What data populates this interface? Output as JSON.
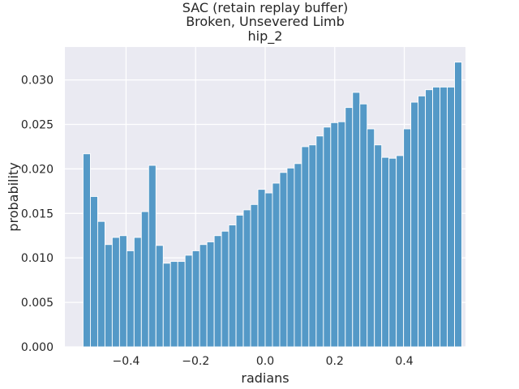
{
  "chart_data": {
    "type": "bar",
    "title_lines": [
      "SAC (retain replay buffer)",
      "Broken, Unsevered Limb",
      "hip_2"
    ],
    "xlabel": "radians",
    "ylabel": "probability",
    "xlim": [
      -0.576,
      0.576
    ],
    "ylim": [
      0,
      0.0337
    ],
    "x_ticks": [
      -0.4,
      -0.2,
      0.0,
      0.2,
      0.4
    ],
    "x_tick_labels": [
      "−0.4",
      "−0.2",
      "0.0",
      "0.2",
      "0.4"
    ],
    "y_ticks": [
      0,
      0.005,
      0.01,
      0.015,
      0.02,
      0.025,
      0.03
    ],
    "y_tick_labels": [
      "0.000",
      "0.005",
      "0.010",
      "0.015",
      "0.020",
      "0.025",
      "0.030"
    ],
    "grid": true,
    "bar_color": "#5499c7",
    "plot_background": "#eaeaf2",
    "bin_start": -0.5236,
    "bin_width": 0.020944,
    "values": [
      0.0217,
      0.0169,
      0.0141,
      0.0115,
      0.0123,
      0.0125,
      0.0108,
      0.0123,
      0.0152,
      0.0204,
      0.0114,
      0.0094,
      0.0096,
      0.0096,
      0.0103,
      0.0108,
      0.0115,
      0.0118,
      0.0125,
      0.013,
      0.0137,
      0.0148,
      0.0154,
      0.016,
      0.0177,
      0.0173,
      0.0184,
      0.0196,
      0.0201,
      0.0206,
      0.0225,
      0.0227,
      0.0237,
      0.0247,
      0.0252,
      0.0253,
      0.0269,
      0.0286,
      0.0273,
      0.0245,
      0.0227,
      0.0213,
      0.0212,
      0.0215,
      0.0245,
      0.0275,
      0.0282,
      0.0289,
      0.0292,
      0.0292,
      0.0292,
      0.032
    ]
  }
}
